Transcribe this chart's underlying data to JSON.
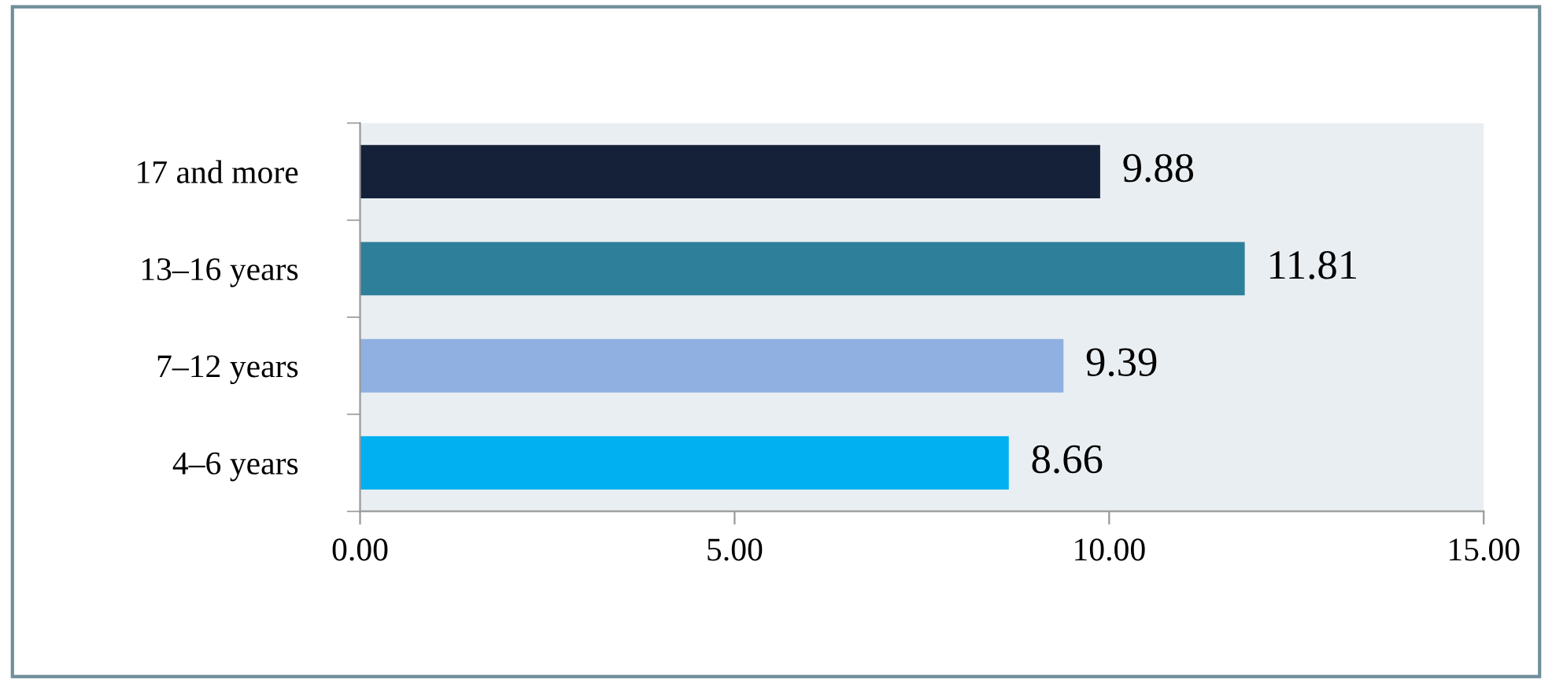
{
  "chart_data": {
    "type": "bar",
    "orientation": "horizontal",
    "categories": [
      "17 and more",
      "13–16 years",
      "7–12 years",
      "4–6 years"
    ],
    "values": [
      9.88,
      11.81,
      9.39,
      8.66
    ],
    "colors": [
      "#142138",
      "#2e7f9a",
      "#8fb0e0",
      "#00b0f0"
    ],
    "xlim": [
      0,
      15
    ],
    "xticks": [
      {
        "value": 0,
        "label": "0.00"
      },
      {
        "value": 5,
        "label": "5.00"
      },
      {
        "value": 10,
        "label": "10.00"
      },
      {
        "value": 15,
        "label": "15.00"
      }
    ],
    "data_labels": true,
    "grid": false,
    "legend": false
  }
}
